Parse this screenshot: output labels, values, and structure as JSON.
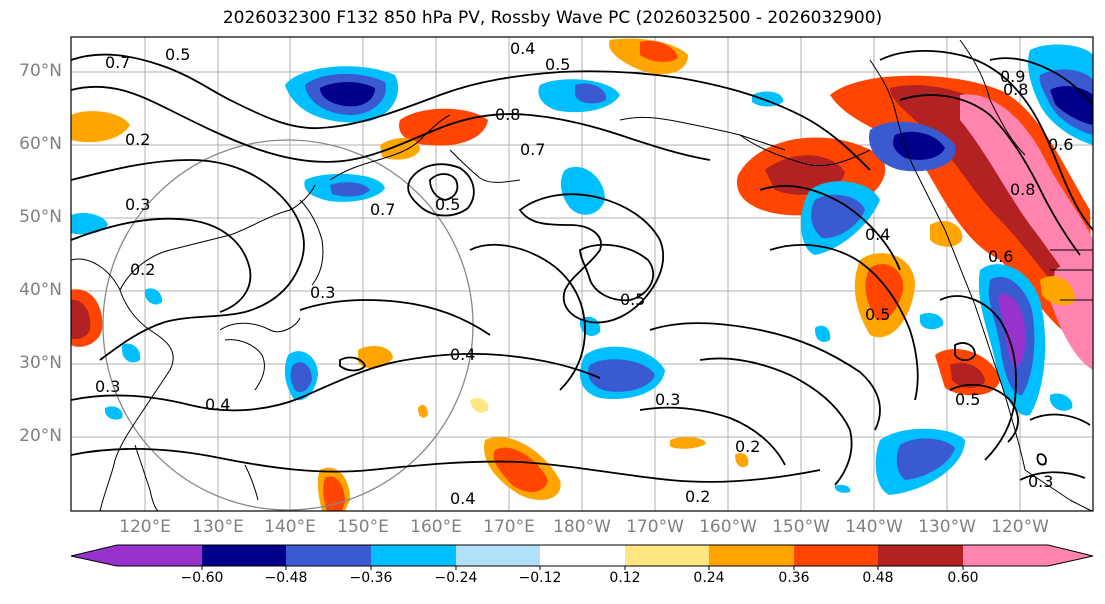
{
  "title": "2026032300 F132 850 hPa PV, Rossby Wave PC (2026032500 - 2026032900)",
  "lat_labels": [
    "70°N",
    "60°N",
    "50°N",
    "40°N",
    "30°N",
    "20°N"
  ],
  "lon_labels": [
    "120°E",
    "130°E",
    "140°E",
    "150°E",
    "160°E",
    "170°E",
    "180°W",
    "170°W",
    "160°W",
    "150°W",
    "140°W",
    "130°W",
    "120°W"
  ],
  "colorbar": {
    "ticks": [
      "−0.60",
      "−0.48",
      "−0.36",
      "−0.24",
      "−0.12",
      "0.12",
      "0.24",
      "0.36",
      "0.48",
      "0.60"
    ],
    "colors": [
      "#9932cc",
      "#00008b",
      "#3a5bd0",
      "#00bfff",
      "#b0e0fa",
      "#ffffff",
      "#ffe680",
      "#ffa500",
      "#ff4500",
      "#b22222",
      "#ff85b0"
    ]
  },
  "contour_labels": [
    "0.4",
    "0.5",
    "0.8",
    "0.7",
    "0.5",
    "0.7",
    "0.2",
    "0.3",
    "0.2",
    "0.7",
    "0.5",
    "0.3",
    "0.4",
    "0.3",
    "0.4",
    "0.5",
    "0.3",
    "0.2",
    "0.2",
    "0.4",
    "0.5",
    "0.6",
    "0.5",
    "0.3",
    "0.8",
    "0.6",
    "0.9",
    "0.8"
  ]
}
